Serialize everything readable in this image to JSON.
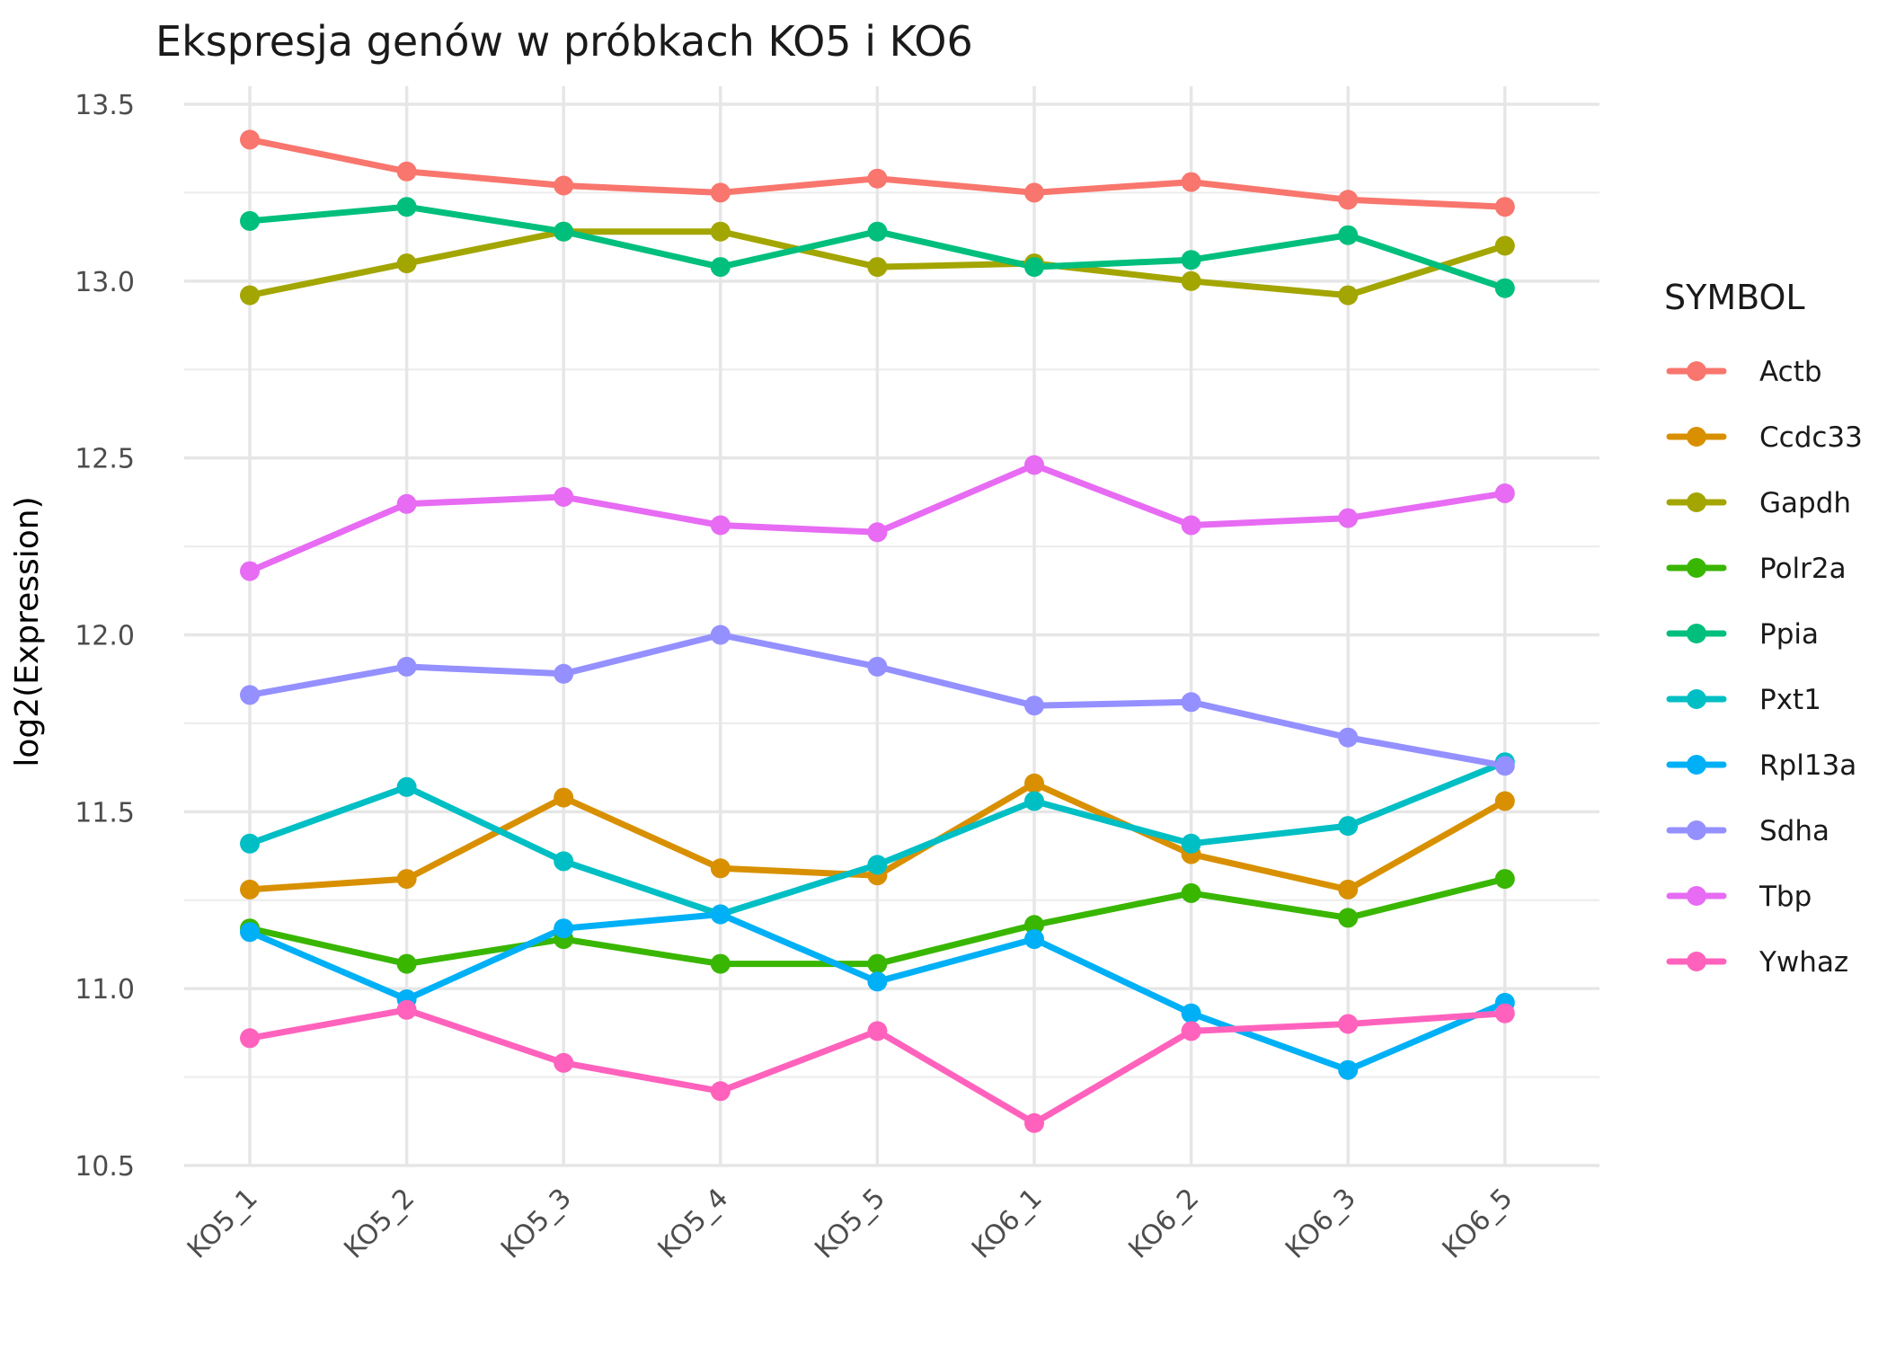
{
  "chart_data": {
    "type": "line",
    "title": "Ekspresja genów w próbkach KO5 i KO6",
    "xlabel": "",
    "ylabel": "log2(Expression)",
    "ylim": [
      10.5,
      13.5
    ],
    "yticks": [
      10.5,
      11.0,
      11.5,
      12.0,
      12.5,
      13.0,
      13.5
    ],
    "ytick_labels": [
      "10.5",
      "11.0",
      "11.5",
      "12.0",
      "12.5",
      "13.0",
      "13.5"
    ],
    "categories": [
      "KO5_1",
      "KO5_2",
      "KO5_3",
      "KO5_4",
      "KO5_5",
      "KO6_1",
      "KO6_2",
      "KO6_3",
      "KO6_5"
    ],
    "grid": true,
    "legend": {
      "title": "SYMBOL",
      "position": "right"
    },
    "series": [
      {
        "name": "Actb",
        "color": "#F8766D",
        "values": [
          13.4,
          13.31,
          13.27,
          13.25,
          13.29,
          13.25,
          13.28,
          13.23,
          13.21
        ]
      },
      {
        "name": "Ccdc33",
        "color": "#D89000",
        "values": [
          11.28,
          11.31,
          11.54,
          11.34,
          11.32,
          11.58,
          11.38,
          11.28,
          11.53
        ]
      },
      {
        "name": "Gapdh",
        "color": "#A3A500",
        "values": [
          12.96,
          13.05,
          13.14,
          13.14,
          13.04,
          13.05,
          13.0,
          12.96,
          13.1
        ]
      },
      {
        "name": "Polr2a",
        "color": "#39B600",
        "values": [
          11.17,
          11.07,
          11.14,
          11.07,
          11.07,
          11.18,
          11.27,
          11.2,
          11.31
        ]
      },
      {
        "name": "Ppia",
        "color": "#00BF7D",
        "values": [
          13.17,
          13.21,
          13.14,
          13.04,
          13.14,
          13.04,
          13.06,
          13.13,
          12.98
        ]
      },
      {
        "name": "Pxt1",
        "color": "#00BFC4",
        "values": [
          11.41,
          11.57,
          11.36,
          11.21,
          11.35,
          11.53,
          11.41,
          11.46,
          11.64
        ]
      },
      {
        "name": "Rpl13a",
        "color": "#00B0F6",
        "values": [
          11.16,
          10.97,
          11.17,
          11.21,
          11.02,
          11.14,
          10.93,
          10.77,
          10.96
        ]
      },
      {
        "name": "Sdha",
        "color": "#9590FF",
        "values": [
          11.83,
          11.91,
          11.89,
          12.0,
          11.91,
          11.8,
          11.81,
          11.71,
          11.63
        ]
      },
      {
        "name": "Tbp",
        "color": "#E76BF3",
        "values": [
          12.18,
          12.37,
          12.39,
          12.31,
          12.29,
          12.48,
          12.31,
          12.33,
          12.4
        ]
      },
      {
        "name": "Ywhaz",
        "color": "#FF62BC",
        "values": [
          10.86,
          10.94,
          10.79,
          10.71,
          10.88,
          10.62,
          10.88,
          10.9,
          10.93
        ]
      }
    ]
  }
}
